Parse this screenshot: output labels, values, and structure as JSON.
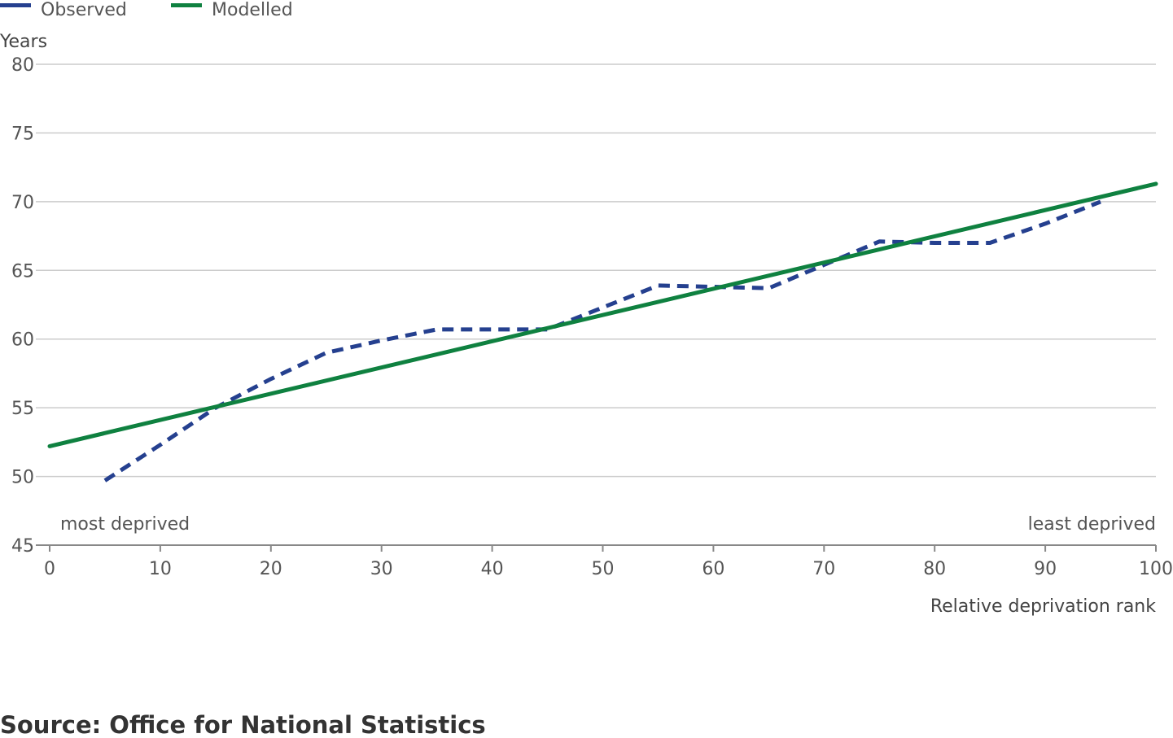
{
  "chart_data": {
    "type": "line",
    "ylabel": "Years",
    "xlabel": "Relative deprivation rank",
    "xlim": [
      0,
      100
    ],
    "ylim": [
      45,
      80
    ],
    "x_ticks": [
      0,
      10,
      20,
      30,
      40,
      50,
      60,
      70,
      80,
      90,
      100
    ],
    "y_ticks": [
      45,
      50,
      55,
      60,
      65,
      70,
      75,
      80
    ],
    "grid": true,
    "legend_position": "top-left",
    "annotations": {
      "left": "most deprived",
      "right": "least deprived"
    },
    "series": [
      {
        "name": "Observed",
        "color": "#25408f",
        "style": "dashed",
        "points": [
          [
            5,
            49.7
          ],
          [
            10,
            52.3
          ],
          [
            15,
            55.0
          ],
          [
            20,
            57.1
          ],
          [
            25,
            59.0
          ],
          [
            30,
            59.9
          ],
          [
            35,
            60.7
          ],
          [
            40,
            60.7
          ],
          [
            45,
            60.7
          ],
          [
            50,
            62.3
          ],
          [
            55,
            63.9
          ],
          [
            60,
            63.8
          ],
          [
            65,
            63.7
          ],
          [
            70,
            65.4
          ],
          [
            75,
            67.1
          ],
          [
            80,
            67.0
          ],
          [
            85,
            67.0
          ],
          [
            90,
            68.4
          ],
          [
            95,
            70.0
          ]
        ]
      },
      {
        "name": "Modelled",
        "color": "#0f8140",
        "style": "solid",
        "points": [
          [
            0,
            52.2
          ],
          [
            100,
            71.3
          ]
        ]
      }
    ]
  },
  "source": "Source: Office for National Statistics"
}
